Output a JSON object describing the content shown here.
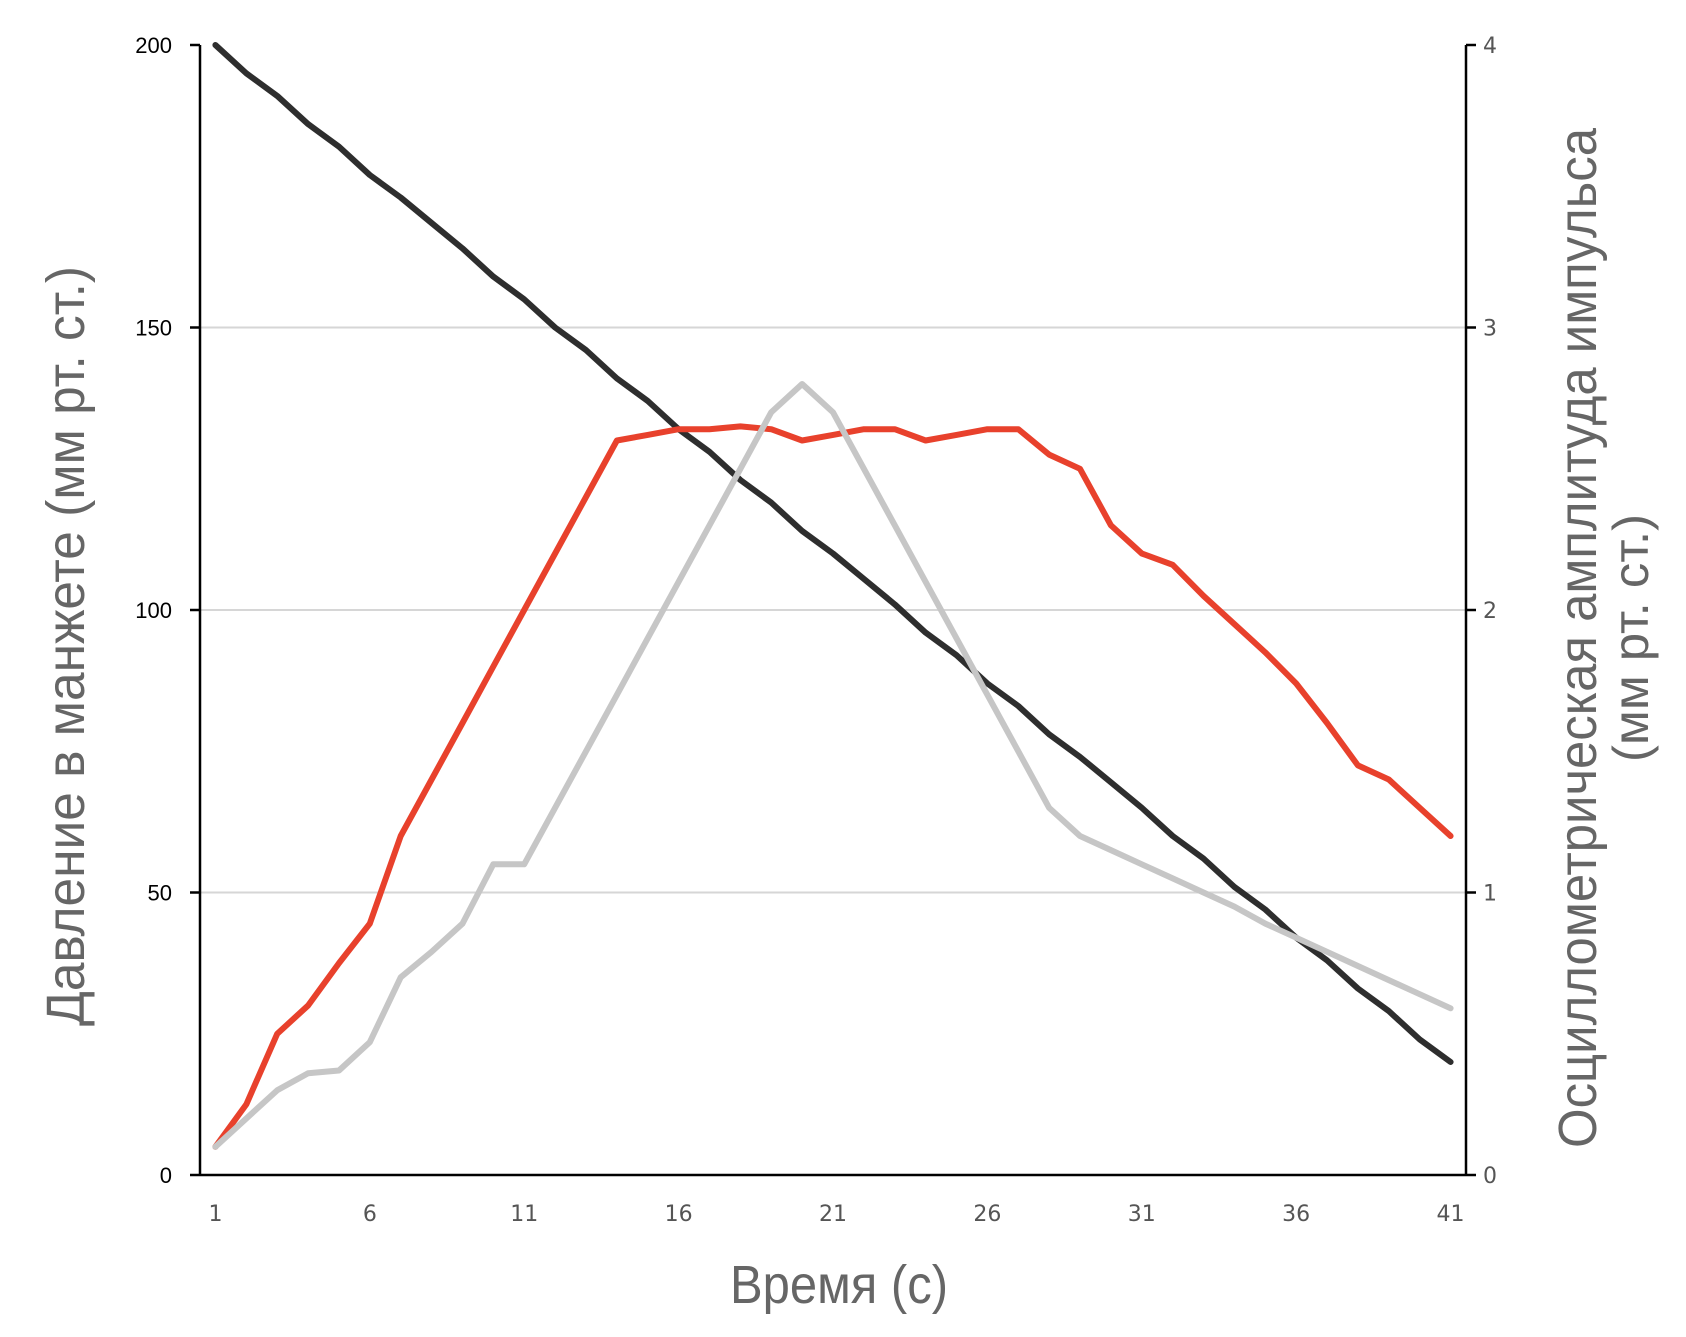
{
  "chart_data": {
    "type": "line",
    "title": "",
    "xlabel": "Время (с)",
    "ylabel_left": "Давление в манжете (мм рт. ст.)",
    "ylabel_right_line1": "Осциллометрическая амплитуда импульса",
    "ylabel_right_line2": "(мм рт. ст.)",
    "x": [
      1,
      2,
      3,
      4,
      5,
      6,
      7,
      8,
      9,
      10,
      11,
      12,
      13,
      14,
      15,
      16,
      17,
      18,
      19,
      20,
      21,
      22,
      23,
      24,
      25,
      26,
      27,
      28,
      29,
      30,
      31,
      32,
      33,
      34,
      35,
      36,
      37,
      38,
      39,
      40,
      41
    ],
    "x_ticks": [
      1,
      6,
      11,
      16,
      21,
      26,
      31,
      36,
      41
    ],
    "xlim": [
      0.5,
      41.5
    ],
    "ylim_left": [
      0,
      200
    ],
    "ylim_right": [
      0,
      4
    ],
    "yticks_left": [
      0,
      50,
      100,
      150,
      200
    ],
    "yticks_right": [
      0,
      1,
      2,
      3,
      4
    ],
    "grid": "horizontal",
    "series": [
      {
        "key": "black",
        "axis": "left",
        "color": "#2e2e2e",
        "values": [
          200,
          195,
          191,
          186,
          182,
          177,
          173,
          168.5,
          164,
          159,
          155,
          150,
          146,
          141,
          137,
          132,
          128,
          123,
          119,
          114,
          110,
          105.5,
          101,
          96,
          92,
          87,
          83,
          78,
          74,
          69.5,
          65,
          60,
          56,
          51,
          47,
          42,
          38,
          33,
          29,
          24,
          20
        ]
      },
      {
        "key": "red",
        "axis": "right",
        "color": "#e8412c",
        "values": [
          0.1,
          0.25,
          0.5,
          0.6,
          0.75,
          0.89,
          1.2,
          1.4,
          1.6,
          1.8,
          2.0,
          2.2,
          2.4,
          2.6,
          2.62,
          2.64,
          2.64,
          2.65,
          2.64,
          2.6,
          2.62,
          2.64,
          2.64,
          2.6,
          2.62,
          2.64,
          2.64,
          2.55,
          2.5,
          2.3,
          2.2,
          2.16,
          2.05,
          1.95,
          1.85,
          1.74,
          1.6,
          1.45,
          1.4,
          1.3,
          1.2
        ]
      },
      {
        "key": "gray",
        "axis": "right",
        "color": "#c6c6c6",
        "values": [
          0.1,
          0.2,
          0.3,
          0.36,
          0.37,
          0.47,
          0.7,
          0.79,
          0.89,
          1.1,
          1.1,
          1.3,
          1.5,
          1.7,
          1.9,
          2.1,
          2.3,
          2.5,
          2.7,
          2.8,
          2.7,
          2.5,
          2.3,
          2.1,
          1.9,
          1.7,
          1.5,
          1.3,
          1.2,
          1.15,
          1.1,
          1.05,
          1.0,
          0.95,
          0.89,
          0.84,
          0.79,
          0.74,
          0.69,
          0.64,
          0.59
        ]
      }
    ]
  }
}
